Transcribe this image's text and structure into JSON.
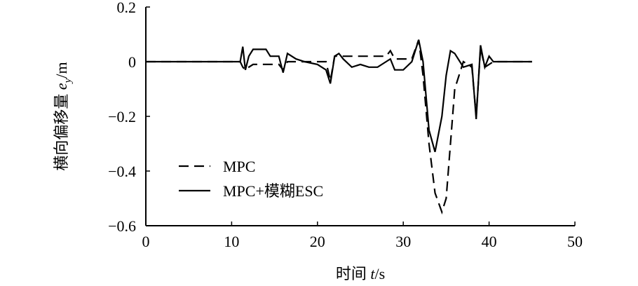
{
  "chart_data": {
    "type": "line",
    "x_label": {
      "text": "时间",
      "var": "t",
      "unit": "/s"
    },
    "y_label": {
      "text": "横向偏移量",
      "var": "e",
      "sub": "y",
      "unit": "/m"
    },
    "x": [
      0,
      11,
      11.3,
      11.6,
      12,
      12.5,
      13,
      14,
      14.5,
      15.5,
      16,
      16.5,
      17.5,
      18.5,
      20,
      21,
      21.5,
      22,
      22.5,
      23,
      24,
      25,
      26,
      27,
      28,
      28.5,
      29,
      30,
      31,
      31.8,
      32.3,
      33,
      33.7,
      34.5,
      35,
      35.5,
      36,
      37,
      38,
      38.5,
      39,
      39.5,
      40,
      40.5,
      45
    ],
    "series": [
      {
        "name": "MPC",
        "color": "#000000",
        "dash": true,
        "values": [
          0,
          0,
          -0.02,
          -0.03,
          -0.02,
          -0.01,
          -0.01,
          -0.01,
          -0.01,
          -0.01,
          -0.03,
          0,
          0,
          0,
          0,
          0,
          -0.07,
          0.02,
          0.02,
          0.02,
          0.02,
          0.02,
          0.02,
          0.02,
          0.02,
          0.04,
          0.01,
          0.01,
          0.01,
          0.08,
          -0.05,
          -0.3,
          -0.48,
          -0.55,
          -0.5,
          -0.3,
          -0.1,
          0,
          -0.02,
          -0.2,
          0.05,
          -0.02,
          -0.01,
          0,
          0
        ]
      },
      {
        "name": "MPC+模糊ESC",
        "color": "#000000",
        "dash": false,
        "values": [
          0,
          0,
          0.055,
          -0.03,
          0.02,
          0.045,
          0.045,
          0.045,
          0.02,
          0.02,
          -0.04,
          0.03,
          0.01,
          0,
          -0.01,
          -0.03,
          -0.08,
          0.02,
          0.03,
          0.01,
          -0.02,
          -0.01,
          -0.02,
          -0.02,
          0,
          0.01,
          -0.03,
          -0.03,
          0,
          0.08,
          0,
          -0.25,
          -0.33,
          -0.2,
          -0.05,
          0.04,
          0.03,
          -0.02,
          -0.01,
          -0.21,
          0.06,
          -0.02,
          0.02,
          0,
          0
        ]
      }
    ],
    "xlim": [
      0,
      50
    ],
    "xticks": [
      0,
      10,
      20,
      30,
      40,
      50
    ],
    "ylim": [
      -0.6,
      0.2
    ],
    "yticks": [
      {
        "value": -0.6,
        "label": "−0.6"
      },
      {
        "value": -0.4,
        "label": "−0.4"
      },
      {
        "value": -0.2,
        "label": "−0.2"
      },
      0,
      0.2
    ],
    "legend": "lower-left"
  }
}
